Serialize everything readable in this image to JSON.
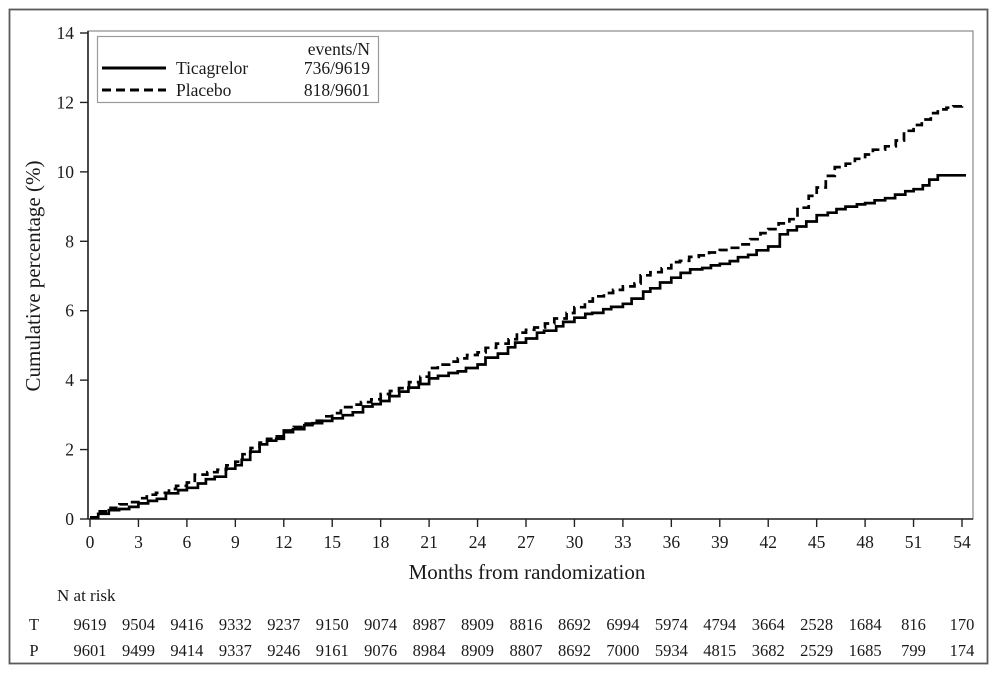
{
  "figure": {
    "background": "#ffffff",
    "border_color": "#5a5a5a",
    "frame_color": "#8a8a8a",
    "axis_color": "#222222",
    "line_color": "#000000"
  },
  "chart_data": {
    "type": "line",
    "subtype": "kaplan-meier-step",
    "title": "",
    "xlabel": "Months from randomization",
    "ylabel": "Cumulative percentage (%)",
    "xlim": [
      0,
      54
    ],
    "ylim": [
      0,
      14
    ],
    "grid": false,
    "x_ticks": [
      0,
      3,
      6,
      9,
      12,
      15,
      18,
      21,
      24,
      27,
      30,
      33,
      36,
      39,
      42,
      45,
      48,
      51,
      54
    ],
    "y_ticks": [
      0,
      2,
      4,
      6,
      8,
      10,
      12,
      14
    ],
    "x": [
      0,
      3,
      6,
      9,
      10.5,
      12,
      15,
      18,
      21,
      24,
      27,
      30,
      33,
      36,
      39,
      42,
      45,
      48,
      51,
      52.5,
      54
    ],
    "series": [
      {
        "name": "Ticagrelor",
        "events_n": "736/9619",
        "line_style": "solid",
        "color": "#000000",
        "values": [
          0.05,
          0.45,
          0.9,
          1.55,
          2.15,
          2.5,
          2.9,
          3.4,
          4.05,
          4.45,
          5.2,
          5.8,
          6.2,
          6.95,
          7.35,
          7.85,
          8.75,
          9.1,
          9.5,
          9.9,
          9.9
        ]
      },
      {
        "name": "Placebo",
        "events_n": "818/9601",
        "line_style": "dashed",
        "color": "#000000",
        "values": [
          0.05,
          0.6,
          1.05,
          1.65,
          2.2,
          2.55,
          3.05,
          3.6,
          4.35,
          4.8,
          5.45,
          6.1,
          6.7,
          7.4,
          7.75,
          8.35,
          9.55,
          10.5,
          11.35,
          11.8,
          11.9
        ]
      }
    ],
    "legend": {
      "position": "top-left",
      "header": "events/N"
    },
    "risk_table": {
      "title": "N at risk",
      "months": [
        0,
        3,
        6,
        9,
        12,
        15,
        18,
        21,
        24,
        27,
        30,
        33,
        36,
        39,
        42,
        45,
        48,
        51,
        54
      ],
      "rows": [
        {
          "label": "T",
          "values": [
            9619,
            9504,
            9416,
            9332,
            9237,
            9150,
            9074,
            8987,
            8909,
            8816,
            8692,
            6994,
            5974,
            4794,
            3664,
            2528,
            1684,
            816,
            170
          ]
        },
        {
          "label": "P",
          "values": [
            9601,
            9499,
            9414,
            9337,
            9246,
            9161,
            9076,
            8984,
            8909,
            8807,
            8692,
            7000,
            5934,
            4815,
            3682,
            2529,
            1685,
            799,
            174
          ]
        }
      ]
    }
  }
}
